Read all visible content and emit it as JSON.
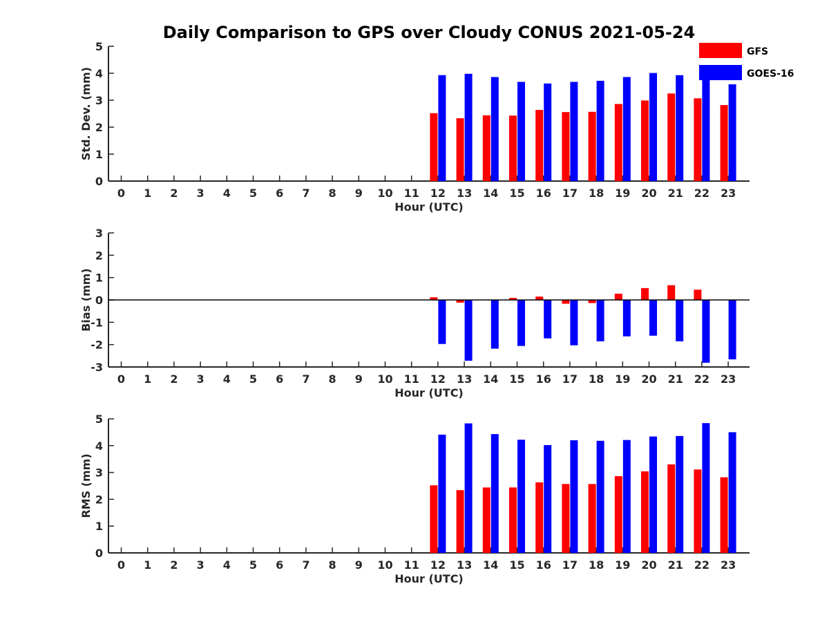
{
  "title": "Daily Comparison to GPS over Cloudy CONUS 2021-05-24",
  "colors": {
    "GFS": "#ff0000",
    "GOES-16": "#0000ff",
    "axis": "#262626"
  },
  "legend": {
    "placement": "top-right",
    "items": [
      "GFS",
      "GOES-16"
    ]
  },
  "chart_data": [
    {
      "type": "bar",
      "xlabel": "Hour (UTC)",
      "ylabel": "Std. Dev. (mm)",
      "ylim": [
        0,
        5
      ],
      "yticks": [
        0,
        1,
        2,
        3,
        4,
        5
      ],
      "categories": [
        "0",
        "1",
        "2",
        "3",
        "4",
        "5",
        "6",
        "7",
        "8",
        "9",
        "10",
        "11",
        "12",
        "13",
        "14",
        "15",
        "16",
        "17",
        "18",
        "19",
        "20",
        "21",
        "22",
        "23"
      ],
      "series": [
        {
          "name": "GFS",
          "values": [
            null,
            null,
            null,
            null,
            null,
            null,
            null,
            null,
            null,
            null,
            null,
            null,
            2.52,
            2.33,
            2.44,
            2.43,
            2.64,
            2.56,
            2.57,
            2.86,
            2.99,
            3.25,
            3.07,
            2.82
          ]
        },
        {
          "name": "GOES-16",
          "values": [
            null,
            null,
            null,
            null,
            null,
            null,
            null,
            null,
            null,
            null,
            null,
            null,
            3.93,
            3.98,
            3.86,
            3.68,
            3.62,
            3.68,
            3.72,
            3.86,
            4.01,
            3.93,
            3.9,
            3.59
          ]
        }
      ]
    },
    {
      "type": "bar",
      "xlabel": "Hour (UTC)",
      "ylabel": "Bias (mm)",
      "ylim": [
        -3,
        3
      ],
      "yticks": [
        -3,
        -2,
        -1,
        0,
        1,
        2,
        3
      ],
      "categories": [
        "0",
        "1",
        "2",
        "3",
        "4",
        "5",
        "6",
        "7",
        "8",
        "9",
        "10",
        "11",
        "12",
        "13",
        "14",
        "15",
        "16",
        "17",
        "18",
        "19",
        "20",
        "21",
        "22",
        "23"
      ],
      "series": [
        {
          "name": "GFS",
          "values": [
            null,
            null,
            null,
            null,
            null,
            null,
            null,
            null,
            null,
            null,
            null,
            null,
            0.12,
            -0.12,
            0.01,
            0.09,
            0.15,
            -0.17,
            -0.14,
            0.28,
            0.53,
            0.66,
            0.46,
            0.01
          ]
        },
        {
          "name": "GOES-16",
          "values": [
            null,
            null,
            null,
            null,
            null,
            null,
            null,
            null,
            null,
            null,
            null,
            null,
            -1.97,
            -2.72,
            -2.18,
            -2.06,
            -1.72,
            -2.03,
            -1.85,
            -1.63,
            -1.6,
            -1.85,
            -2.81,
            -2.66
          ]
        }
      ]
    },
    {
      "type": "bar",
      "xlabel": "Hour (UTC)",
      "ylabel": "RMS (mm)",
      "ylim": [
        0,
        5
      ],
      "yticks": [
        0,
        1,
        2,
        3,
        4,
        5
      ],
      "categories": [
        "0",
        "1",
        "2",
        "3",
        "4",
        "5",
        "6",
        "7",
        "8",
        "9",
        "10",
        "11",
        "12",
        "13",
        "14",
        "15",
        "16",
        "17",
        "18",
        "19",
        "20",
        "21",
        "22",
        "23"
      ],
      "series": [
        {
          "name": "GFS",
          "values": [
            null,
            null,
            null,
            null,
            null,
            null,
            null,
            null,
            null,
            null,
            null,
            null,
            2.52,
            2.34,
            2.44,
            2.44,
            2.63,
            2.57,
            2.57,
            2.86,
            3.04,
            3.3,
            3.11,
            2.82
          ]
        },
        {
          "name": "GOES-16",
          "values": [
            null,
            null,
            null,
            null,
            null,
            null,
            null,
            null,
            null,
            null,
            null,
            null,
            4.41,
            4.83,
            4.43,
            4.22,
            4.02,
            4.2,
            4.18,
            4.21,
            4.34,
            4.36,
            4.84,
            4.5
          ]
        }
      ]
    }
  ]
}
